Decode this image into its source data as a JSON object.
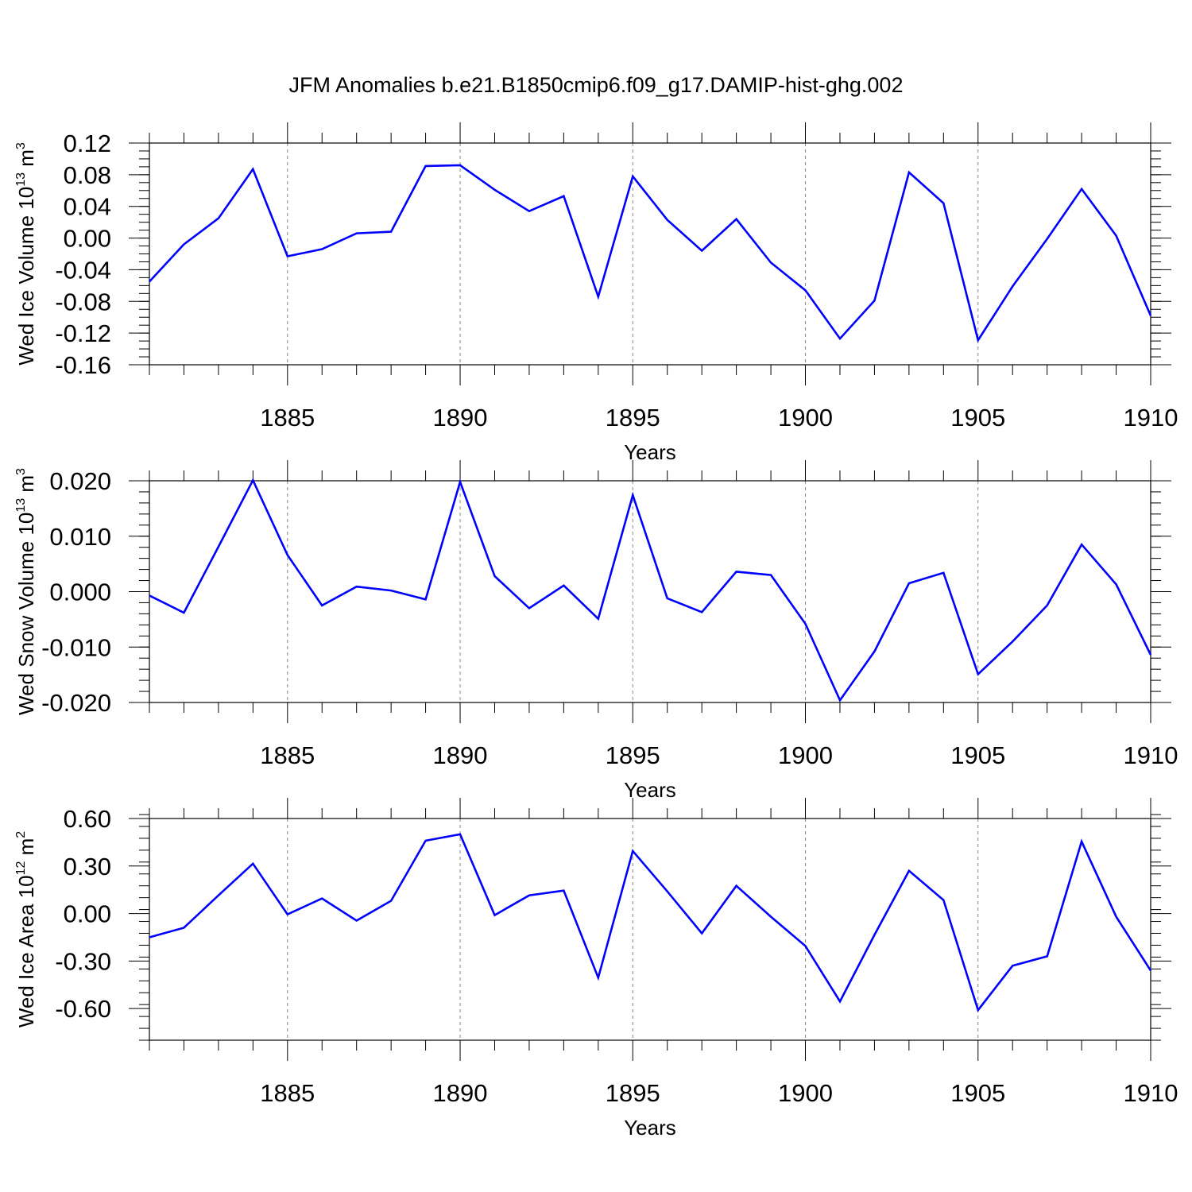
{
  "title": "JFM Anomalies b.e21.B1850cmip6.f09_g17.DAMIP-hist-ghg.002",
  "chart_data": [
    {
      "type": "line",
      "xlabel": "Years",
      "ylabel": {
        "text": "Wed Ice Volume 10",
        "exp": "13",
        "unit": " m",
        "unit_exp": "3"
      },
      "xlim": [
        1881,
        1910
      ],
      "ylim": [
        -0.16,
        0.12
      ],
      "x_ticks": [
        1885,
        1890,
        1895,
        1900,
        1905,
        1910
      ],
      "x_tick_labels": [
        "1885",
        "1890",
        "1895",
        "1900",
        "1905",
        "1910"
      ],
      "y_ticks": [
        -0.16,
        -0.12,
        -0.08,
        -0.04,
        0.0,
        0.04,
        0.08,
        0.12
      ],
      "y_tick_labels": [
        "-0.16",
        "-0.12",
        "-0.08",
        "-0.04",
        "0.00",
        "0.04",
        "0.08",
        "0.12"
      ],
      "y_minor_step": 0.01,
      "grid": "vertical dashed at major x ticks",
      "color": "#0000ff",
      "x": [
        1881,
        1882,
        1883,
        1884,
        1885,
        1886,
        1887,
        1888,
        1889,
        1890,
        1891,
        1892,
        1893,
        1894,
        1895,
        1896,
        1897,
        1898,
        1899,
        1900,
        1901,
        1902,
        1903,
        1904,
        1905,
        1906,
        1907,
        1908,
        1909,
        1910
      ],
      "y": [
        -0.055,
        -0.008,
        0.025,
        0.087,
        -0.023,
        -0.014,
        0.006,
        0.008,
        0.091,
        0.092,
        0.061,
        0.034,
        0.053,
        -0.074,
        0.078,
        0.023,
        -0.016,
        0.024,
        -0.031,
        -0.066,
        -0.127,
        -0.079,
        0.083,
        0.044,
        -0.129,
        -0.061,
        -0.001,
        0.062,
        0.003,
        -0.098
      ]
    },
    {
      "type": "line",
      "xlabel": "Years",
      "ylabel": {
        "text": "Wed Snow Volume 10",
        "exp": "13",
        "unit": " m",
        "unit_exp": "3"
      },
      "xlim": [
        1881,
        1910
      ],
      "ylim": [
        -0.02,
        0.02
      ],
      "x_ticks": [
        1885,
        1890,
        1895,
        1900,
        1905,
        1910
      ],
      "x_tick_labels": [
        "1885",
        "1890",
        "1895",
        "1900",
        "1905",
        "1910"
      ],
      "y_ticks": [
        -0.02,
        -0.01,
        0.0,
        0.01,
        0.02
      ],
      "y_tick_labels": [
        "-0.020",
        "-0.010",
        "0.000",
        "0.010",
        "0.020"
      ],
      "y_minor_step": 0.002,
      "grid": "vertical dashed at major x ticks",
      "color": "#0000ff",
      "x": [
        1881,
        1882,
        1883,
        1884,
        1885,
        1886,
        1887,
        1888,
        1889,
        1890,
        1891,
        1892,
        1893,
        1894,
        1895,
        1896,
        1897,
        1898,
        1899,
        1900,
        1901,
        1902,
        1903,
        1904,
        1905,
        1906,
        1907,
        1908,
        1909,
        1910
      ],
      "y": [
        -0.0007,
        -0.0038,
        0.0081,
        0.0201,
        0.0066,
        -0.0025,
        0.0009,
        0.0002,
        -0.0014,
        0.0198,
        0.0028,
        -0.003,
        0.0011,
        -0.0049,
        0.0174,
        -0.0012,
        -0.0037,
        0.0036,
        0.003,
        -0.0058,
        -0.0196,
        -0.0108,
        0.0015,
        0.0034,
        -0.0149,
        -0.009,
        -0.0025,
        0.0085,
        0.0013,
        -0.0114
      ]
    },
    {
      "type": "line",
      "xlabel": "Years",
      "ylabel": {
        "text": "Wed Ice Area 10",
        "exp": "12",
        "unit": " m",
        "unit_exp": "2"
      },
      "xlim": [
        1881,
        1910
      ],
      "ylim": [
        -0.8,
        0.6
      ],
      "x_ticks": [
        1885,
        1890,
        1895,
        1900,
        1905,
        1910
      ],
      "x_tick_labels": [
        "1885",
        "1890",
        "1895",
        "1900",
        "1905",
        "1910"
      ],
      "y_ticks": [
        -0.6,
        -0.3,
        0.0,
        0.3,
        0.6
      ],
      "y_tick_labels": [
        "-0.60",
        "-0.30",
        "0.00",
        "0.30",
        "0.60"
      ],
      "y_minor_step": 0.075,
      "grid": "vertical dashed at major x ticks",
      "color": "#0000ff",
      "x": [
        1881,
        1882,
        1883,
        1884,
        1885,
        1886,
        1887,
        1888,
        1889,
        1890,
        1891,
        1892,
        1893,
        1894,
        1895,
        1896,
        1897,
        1898,
        1899,
        1900,
        1901,
        1902,
        1903,
        1904,
        1905,
        1906,
        1907,
        1908,
        1909,
        1910
      ],
      "y": [
        -0.15,
        -0.09,
        0.115,
        0.315,
        -0.005,
        0.095,
        -0.045,
        0.08,
        0.46,
        0.5,
        -0.01,
        0.115,
        0.145,
        -0.405,
        0.395,
        0.14,
        -0.125,
        0.175,
        -0.02,
        -0.205,
        -0.555,
        -0.135,
        0.27,
        0.085,
        -0.61,
        -0.33,
        -0.27,
        0.455,
        -0.02,
        -0.36
      ]
    }
  ]
}
